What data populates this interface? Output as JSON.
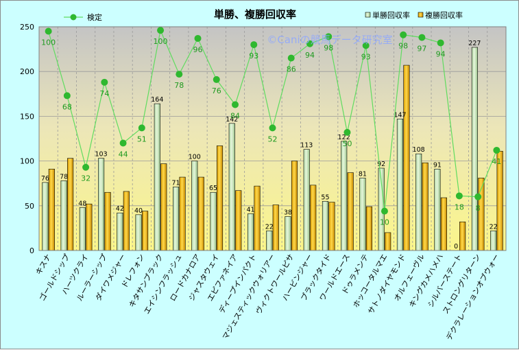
{
  "chart_data": {
    "type": "bar",
    "title": "単勝、複勝回収率",
    "watermark": "©Caniの競馬データ研究室",
    "ylim": [
      0,
      250
    ],
    "yticks": [
      0,
      50,
      100,
      150,
      200,
      250
    ],
    "categories": [
      "キスナ",
      "ゴールドシップ",
      "ハーツクライ",
      "ルーラーシップ",
      "ダイワメジャー",
      "ドレフォン",
      "キタサンブラック",
      "エイシンフラッシュ",
      "ロードカナロア",
      "ジャスタウェイ",
      "エピファネイア",
      "ディープインパクト",
      "マジェスティックウォリアー",
      "ヴィクトワールピサ",
      "ハービンジャー",
      "ブラックタイド",
      "ワールドエース",
      "ドゥラメンテ",
      "ホッコータルマエ",
      "サトノダイヤモンド",
      "オルフェーヴル",
      "キングカメハメハ",
      "シルバーステート",
      "ストロングリターン",
      "デクラレーションオブウォー"
    ],
    "series": [
      {
        "name": "単勝回収率",
        "type": "bar",
        "color": "#c6e6b4",
        "values": [
          76,
          78,
          48,
          103,
          42,
          40,
          164,
          71,
          100,
          65,
          142,
          41,
          22,
          38,
          113,
          55,
          122,
          81,
          92,
          147,
          108,
          91,
          0,
          227,
          22
        ]
      },
      {
        "name": "複勝回収率",
        "type": "bar",
        "color": "#f2b705",
        "values": [
          91,
          103,
          52,
          65,
          66,
          44,
          97,
          82,
          82,
          117,
          67,
          72,
          51,
          100,
          73,
          54,
          87,
          49,
          20,
          207,
          98,
          59,
          32,
          81,
          111
        ]
      },
      {
        "name": "検定",
        "type": "line",
        "color": "#5fdc5f",
        "marker": "#2fb82f",
        "values": [
          245,
          173,
          93,
          188,
          120,
          137,
          246,
          197,
          237,
          191,
          163,
          230,
          137,
          215,
          231,
          239,
          132,
          229,
          44,
          241,
          238,
          232,
          61,
          60,
          112
        ],
        "labels": [
          100,
          68,
          32,
          74,
          44,
          51,
          100,
          78,
          96,
          76,
          84,
          93,
          52,
          86,
          94,
          98,
          50,
          93,
          10,
          98,
          97,
          94,
          18,
          8,
          41
        ]
      }
    ]
  }
}
